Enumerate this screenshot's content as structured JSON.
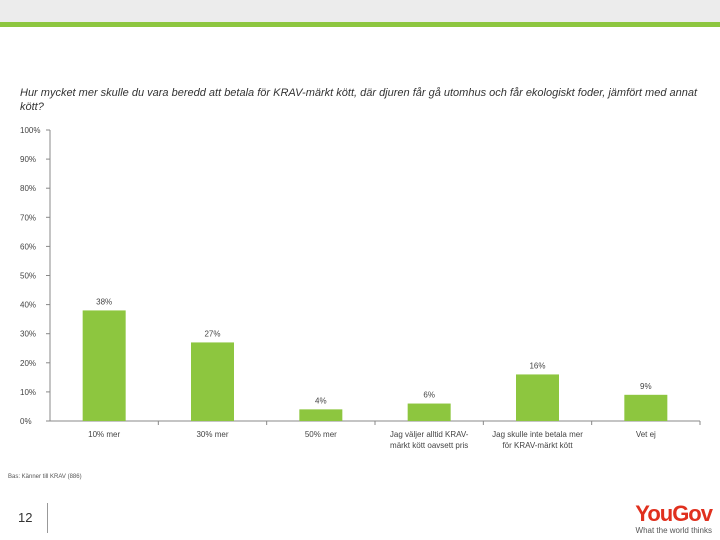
{
  "slide": {
    "question": "Hur mycket mer skulle du vara beredd att betala för KRAV-märkt kött, där djuren får gå utomhus och får ekologiskt foder, jämfört med annat kött?",
    "footnote": "Bas: Känner till KRAV (886)",
    "page_number": "12"
  },
  "logo": {
    "word": "YouGov",
    "tagline": "What the world thinks"
  },
  "colors": {
    "bar": "#8dc63f",
    "axis": "#888888",
    "grid": "#dddddd",
    "brand": "#e0301e"
  },
  "chart_data": {
    "type": "bar",
    "title": "",
    "xlabel": "",
    "ylabel": "",
    "ylim": [
      0,
      100
    ],
    "yticks": [
      0,
      10,
      20,
      30,
      40,
      50,
      60,
      70,
      80,
      90,
      100
    ],
    "ytick_labels": [
      "0%",
      "10%",
      "20%",
      "30%",
      "40%",
      "50%",
      "60%",
      "70%",
      "80%",
      "90%",
      "100%"
    ],
    "grid": false,
    "categories": [
      [
        "10% mer"
      ],
      [
        "30% mer"
      ],
      [
        "50% mer"
      ],
      [
        "Jag väljer alltid KRAV-",
        "märkt kött oavsett pris"
      ],
      [
        "Jag skulle inte betala mer",
        "för KRAV-märkt kött"
      ],
      [
        "Vet ej"
      ]
    ],
    "values": [
      38,
      27,
      4,
      6,
      16,
      9
    ],
    "value_labels": [
      "38%",
      "27%",
      "4%",
      "6%",
      "16%",
      "9%"
    ]
  }
}
